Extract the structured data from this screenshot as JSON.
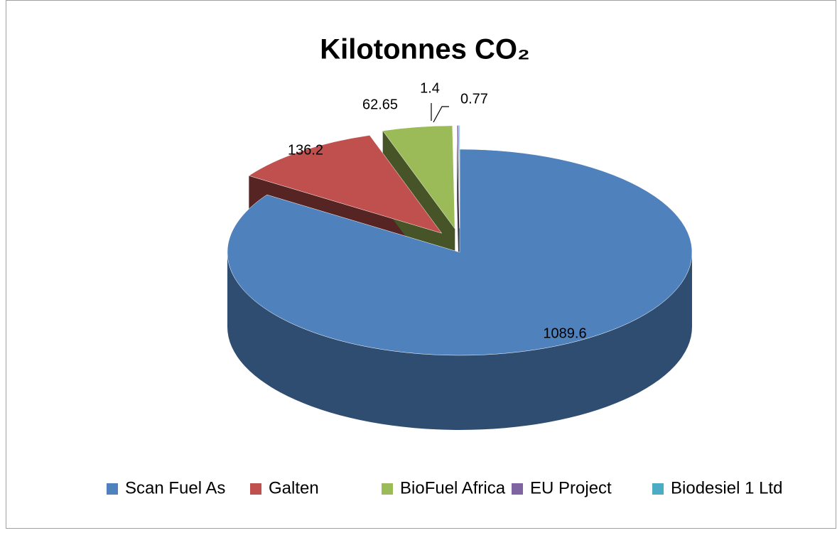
{
  "chart_data": {
    "type": "pie3d",
    "title": "Kilotonnes CO₂",
    "categories": [
      "Scan Fuel As",
      "Galten",
      "BioFuel Africa",
      "EU Project",
      "Biodesiel 1 Ltd"
    ],
    "values": [
      1089.6,
      136.2,
      62.65,
      1.4,
      0.77
    ],
    "colors": [
      "#4f81bd",
      "#c0504d",
      "#9bbb59",
      "#8064a2",
      "#4bacc6"
    ],
    "legend": "bottom"
  }
}
